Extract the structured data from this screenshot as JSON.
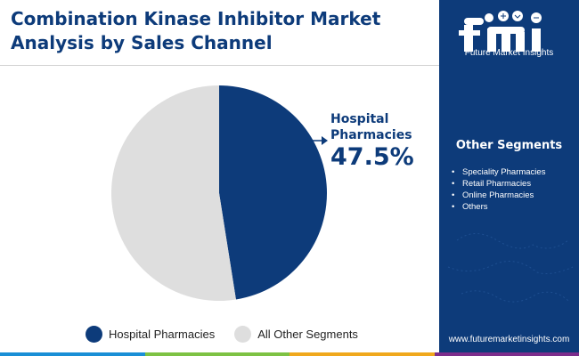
{
  "title_line1": "Combination Kinase Inhibitor Market",
  "title_line2": "Analysis by Sales Channel",
  "chart_data": {
    "type": "pie",
    "title": "Combination Kinase Inhibitor Market Analysis by Sales Channel",
    "slices": [
      {
        "label": "Hospital Pharmacies",
        "value": 47.5,
        "color": "#0d3b7a"
      },
      {
        "label": "All Other Segments",
        "value": 52.5,
        "color": "#dedede"
      }
    ],
    "callout": {
      "label_line1": "Hospital",
      "label_line2": "Pharmacies",
      "value_text": "47.5%"
    },
    "legend_position": "bottom"
  },
  "legend": [
    {
      "label": "Hospital Pharmacies",
      "color": "#0d3b7a"
    },
    {
      "label": "All Other Segments",
      "color": "#dedede"
    }
  ],
  "sidebar": {
    "logo_text": "Future Market Insights",
    "heading": "Other Segments",
    "segments": [
      "Speciality Pharmacies",
      "Retail Pharmacies",
      "Online Pharmacies",
      "Others"
    ],
    "website": "www.futuremarketinsights.com"
  },
  "colors": {
    "brand_navy": "#0d3b7a",
    "accent_bars": [
      "#1a8fd6",
      "#7dc243",
      "#f0a81c",
      "#7c2d8c"
    ]
  }
}
